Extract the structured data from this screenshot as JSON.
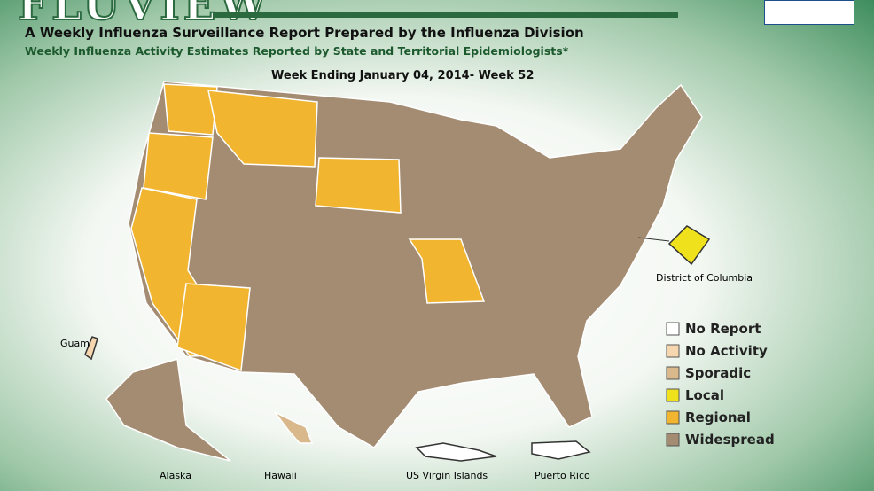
{
  "header": {
    "logo": "FLUVIEW",
    "title": "A Weekly Influenza Surveillance Report Prepared by the Influenza Division",
    "subtitle": "Weekly Influenza Activity Estimates Reported by State and Territorial Epidemiologists*",
    "week": "Week Ending January 04, 2014- Week 52"
  },
  "map": {
    "labels": {
      "dc": "District of Columbia",
      "guam": "Guam",
      "alaska": "Alaska",
      "hawaii": "Hawaii",
      "vi": "US Virgin Islands",
      "pr": "Puerto Rico"
    }
  },
  "legend": {
    "items": [
      {
        "label": "No Report",
        "color": "#ffffff"
      },
      {
        "label": "No Activity",
        "color": "#f6d6ae"
      },
      {
        "label": "Sporadic",
        "color": "#d9b98c"
      },
      {
        "label": "Local",
        "color": "#efe21c"
      },
      {
        "label": "Regional",
        "color": "#f1b530"
      },
      {
        "label": "Widespread",
        "color": "#a48c72"
      }
    ]
  }
}
